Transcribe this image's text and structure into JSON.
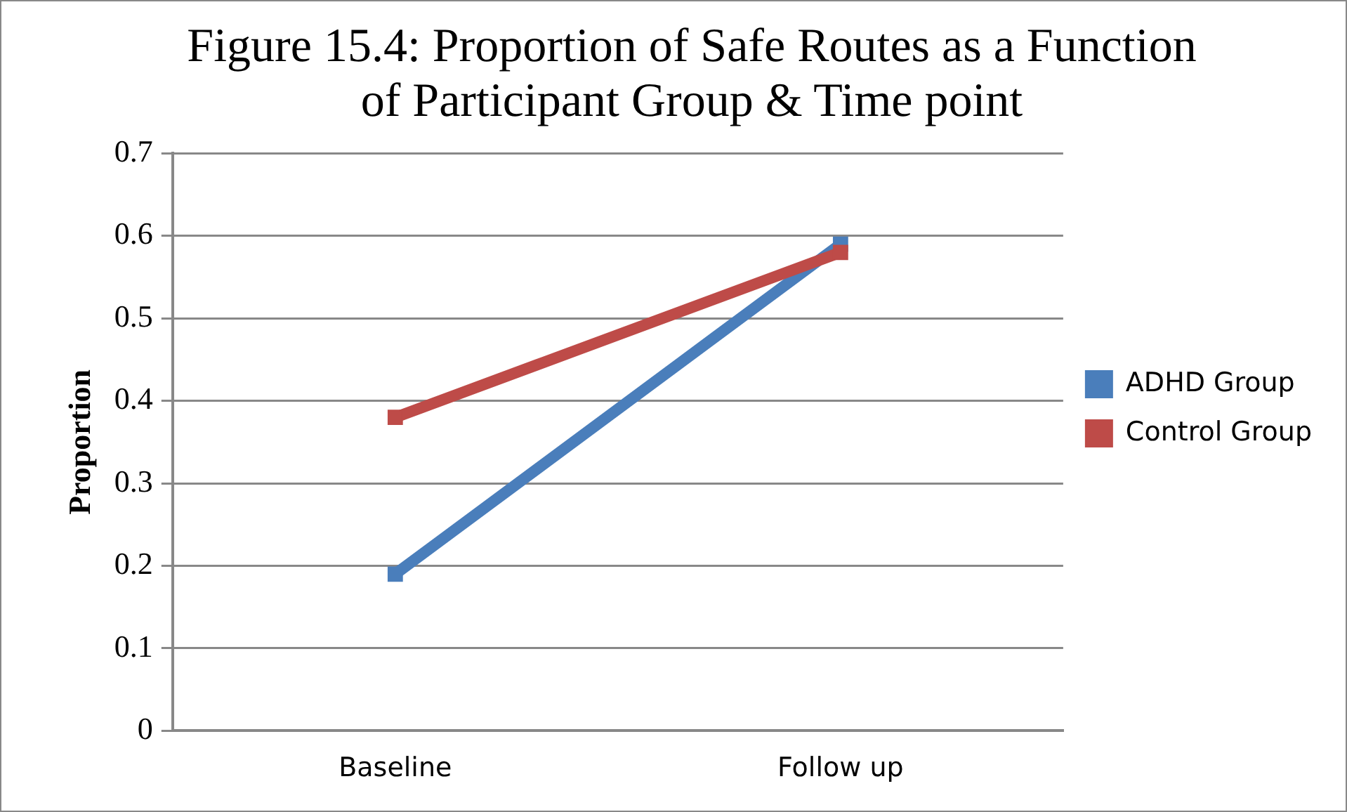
{
  "chart_data": {
    "type": "line",
    "title": "Figure 15.4: Proportion of Safe Routes as a Function of Participant Group & Time point",
    "ylabel": "Proportion",
    "categories": [
      "Baseline",
      "Follow up"
    ],
    "series": [
      {
        "name": "ADHD Group",
        "color": "#4a7ebb",
        "values": [
          0.19,
          0.59
        ]
      },
      {
        "name": "Control Group",
        "color": "#be4b48",
        "values": [
          0.38,
          0.58
        ]
      }
    ],
    "ylim": [
      0,
      0.7
    ],
    "yticks": [
      0,
      0.1,
      0.2,
      0.3,
      0.4,
      0.5,
      0.6,
      0.7
    ],
    "grid": "y",
    "legend": "right",
    "marker": "square",
    "line_style": "solid"
  }
}
